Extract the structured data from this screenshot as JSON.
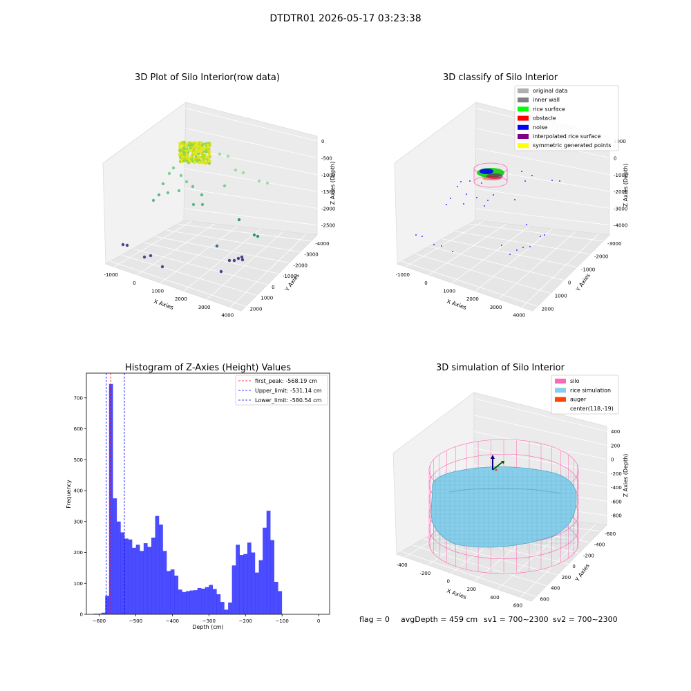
{
  "suptitle": "DTDTR01 2026-05-17 03:23:38",
  "panels": {
    "raw": {
      "title": "3D Plot of Silo Interior(row data)",
      "xlabel": "X Axies",
      "ylabel": "Y Axies",
      "zlabel": "Z Axies (Depth)",
      "xticks": [
        "-1000",
        "0",
        "1000",
        "2000",
        "3000",
        "4000"
      ],
      "yticks": [
        "-4000",
        "-3000",
        "-2000",
        "-1000",
        "0",
        "1000",
        "2000"
      ],
      "zticks": [
        "0",
        "-500",
        "-1000",
        "-1500",
        "-2000",
        "-2500"
      ]
    },
    "classify": {
      "title": "3D classify of Silo Interior",
      "xlabel": "X Axies",
      "ylabel": "Y Axies",
      "zlabel": "Z Axies (Depth)",
      "xticks": [
        "-1000",
        "0",
        "1000",
        "2000",
        "3000",
        "4000"
      ],
      "yticks": [
        "-3000",
        "-2000",
        "-1000",
        "0",
        "1000",
        "2000"
      ],
      "zticks": [
        "1000",
        "0",
        "-1000",
        "-2000",
        "-3000",
        "-4000"
      ],
      "legend": [
        {
          "label": "original data",
          "color": "#b0b0b0"
        },
        {
          "label": "inner wall",
          "color": "#808080"
        },
        {
          "label": "rice surface",
          "color": "#00ff00"
        },
        {
          "label": "obstacle",
          "color": "#ff0000"
        },
        {
          "label": "noise",
          "color": "#0000ff"
        },
        {
          "label": "interpolated rice surface",
          "color": "#800080"
        },
        {
          "label": "symmetric generated points",
          "color": "#ffff00"
        }
      ]
    },
    "simulation": {
      "title": "3D simulation of Silo Interior",
      "xlabel": "X Axies",
      "ylabel": "Y Axies",
      "zlabel": "Z Axies (Depth)",
      "xticks": [
        "-400",
        "-200",
        "0",
        "200",
        "400",
        "600"
      ],
      "yticks": [
        "-600",
        "-400",
        "-200",
        "0",
        "200",
        "400",
        "600"
      ],
      "zticks": [
        "400",
        "200",
        "0",
        "-200",
        "-400",
        "-600",
        "-800"
      ],
      "legend": [
        {
          "label": "silo",
          "color": "#ff69b4"
        },
        {
          "label": "rice simulation",
          "color": "#87ceeb"
        },
        {
          "label": "auger",
          "color": "#ff4500"
        },
        {
          "label": "center(118,-19)",
          "color": ""
        }
      ]
    }
  },
  "footer": {
    "flag": "flag = 0",
    "avg": "avgDepth = 459 cm",
    "sv1": "sv1 = 700~2300",
    "sv2": "sv2 = 700~2300"
  },
  "chart_data": [
    {
      "type": "bar",
      "title": "Histogram of Z-Axies (Height) Values",
      "xlabel": "Depth (cm)",
      "ylabel": "Frequency",
      "xlim": [
        -635,
        30
      ],
      "ylim": [
        0,
        780
      ],
      "xticks": [
        -600,
        -500,
        -400,
        -300,
        -200,
        -100,
        0
      ],
      "yticks": [
        0,
        100,
        200,
        300,
        400,
        500,
        600,
        700
      ],
      "bin_start": -615,
      "bin_width": 10.5,
      "values": [
        2,
        2,
        5,
        60,
        745,
        375,
        300,
        265,
        245,
        242,
        215,
        225,
        205,
        230,
        218,
        248,
        318,
        290,
        205,
        140,
        145,
        125,
        80,
        72,
        75,
        77,
        78,
        85,
        83,
        88,
        95,
        82,
        65,
        40,
        15,
        38,
        158,
        225,
        192,
        195,
        232,
        200,
        135,
        175,
        280,
        335,
        240,
        105,
        75
      ],
      "color": "#0000ff",
      "lines": [
        {
          "label": "first_peak: -568.19 cm",
          "x": -568.19,
          "color": "#ff0000"
        },
        {
          "label": "Upper_limit: -531.14 cm",
          "x": -531.14,
          "color": "#0000ff"
        },
        {
          "label": "Lower_limit: -580.54 cm",
          "x": -580.54,
          "color": "#0000ff"
        }
      ],
      "legend_position": "top-right"
    }
  ]
}
